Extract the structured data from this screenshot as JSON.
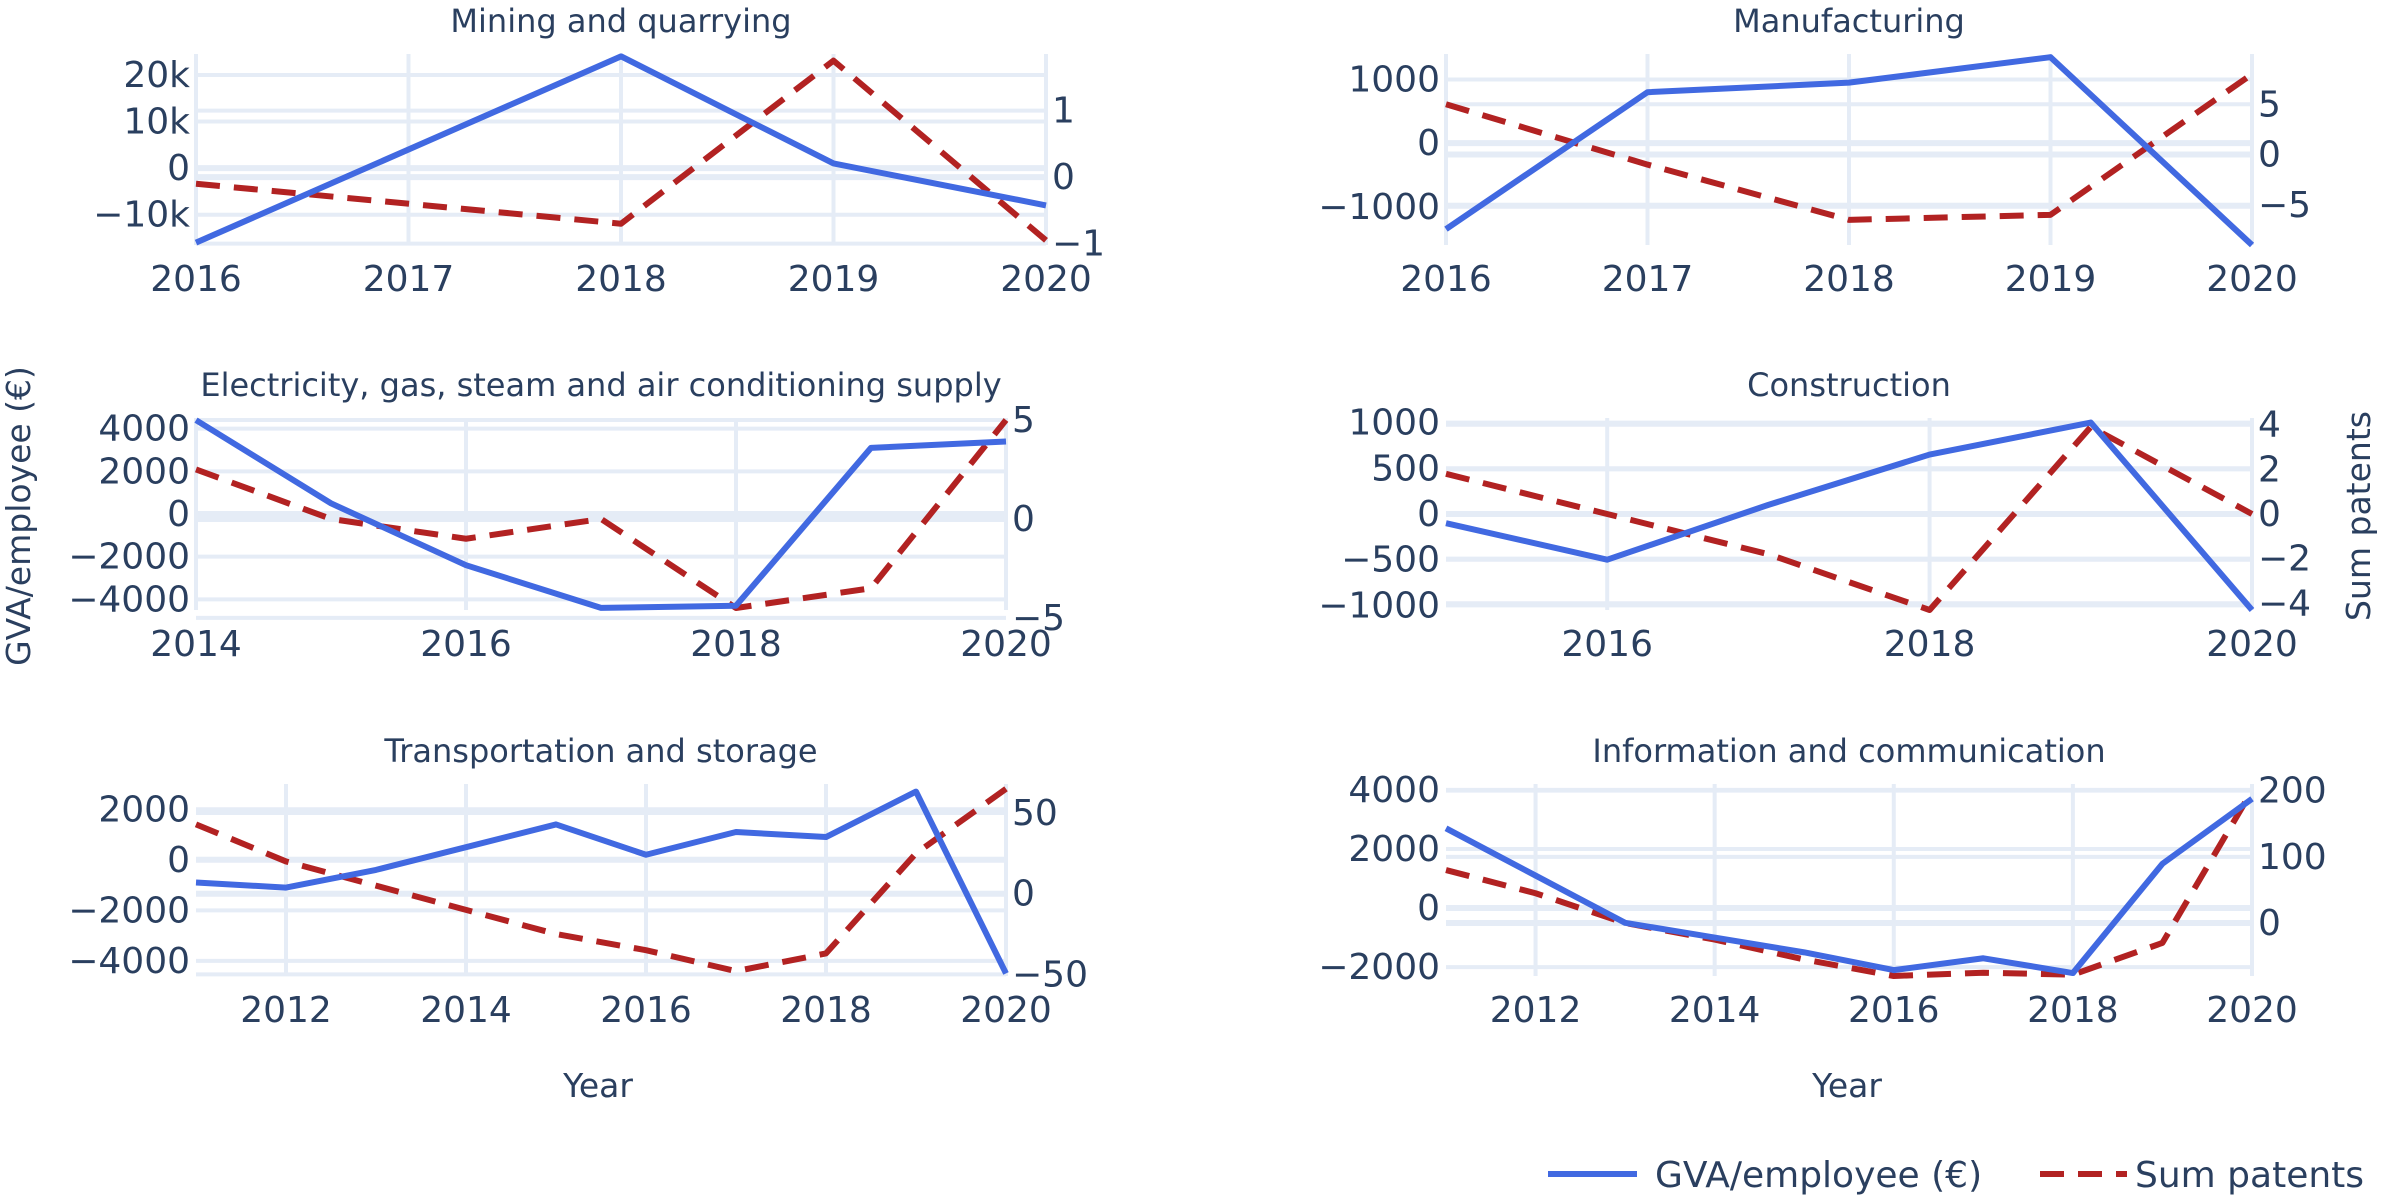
{
  "chart_data": {
    "type": "line",
    "left_ylabel": "GVA/employee (€)",
    "right_ylabel": "Sum patents",
    "xlabels": [
      "Year",
      "Year"
    ],
    "legend": {
      "placement": "bottom-right",
      "entries": [
        {
          "name": "GVA/employee (€)",
          "color": "#4169e1",
          "dash": "solid"
        },
        {
          "name": "Sum patents",
          "color": "#b22222",
          "dash": "dash"
        }
      ]
    },
    "colors": {
      "gva": "#4169e1",
      "patents": "#b22222",
      "grid": "#e5ecf6"
    },
    "panels": [
      {
        "title": "Mining and quarrying",
        "xrange": [
          2016,
          2020
        ],
        "xticks": [
          "2016",
          "2017",
          "2018",
          "2019",
          "2020"
        ],
        "left_range": [
          -16500,
          24500
        ],
        "left_ticks": [
          -10000,
          0,
          10000,
          20000
        ],
        "left_tick_labels": [
          "−10k",
          "0",
          "10k",
          "20k"
        ],
        "right_range": [
          -1.02,
          1.85
        ],
        "right_ticks": [
          -1,
          0,
          1
        ],
        "right_tick_labels": [
          "−1",
          "0",
          "1"
        ],
        "gva": {
          "x": [
            2016,
            2018,
            2019,
            2020
          ],
          "y": [
            -16000,
            24000,
            1000,
            -8000
          ]
        },
        "patents": {
          "x": [
            2016,
            2018,
            2019,
            2020
          ],
          "y": [
            -0.1,
            -0.7,
            1.75,
            -0.95
          ]
        }
      },
      {
        "title": "Manufacturing",
        "xrange": [
          2016,
          2020
        ],
        "xticks": [
          "2016",
          "2017",
          "2018",
          "2019",
          "2020"
        ],
        "left_range": [
          -1600,
          1400
        ],
        "left_ticks": [
          -1000,
          0,
          1000
        ],
        "left_tick_labels": [
          "−1000",
          "0",
          "1000"
        ],
        "right_range": [
          -9,
          10
        ],
        "right_ticks": [
          -5,
          0,
          5
        ],
        "right_tick_labels": [
          "−5",
          "0",
          "5"
        ],
        "gva": {
          "x": [
            2016,
            2017,
            2018,
            2019,
            2020
          ],
          "y": [
            -1350,
            800,
            950,
            1350,
            -1600
          ]
        },
        "patents": {
          "x": [
            2016,
            2017,
            2018,
            2019,
            2020
          ],
          "y": [
            5,
            -1,
            -6.5,
            -6,
            8
          ]
        }
      },
      {
        "title": "Electricity, gas, steam and air conditioning supply",
        "xrange": [
          2014,
          2020
        ],
        "xticks": [
          "2014",
          "2016",
          "2018",
          "2020"
        ],
        "left_range": [
          -4500,
          4500
        ],
        "left_ticks": [
          -4000,
          -2000,
          0,
          2000,
          4000
        ],
        "left_tick_labels": [
          "−4000",
          "−2000",
          "0",
          "2000",
          "4000"
        ],
        "right_range": [
          -4.6,
          5.1
        ],
        "right_ticks": [
          -5,
          0,
          5
        ],
        "right_tick_labels": [
          "−5",
          "0",
          "5"
        ],
        "gva": {
          "x": [
            2014,
            2015,
            2016,
            2017,
            2018,
            2019,
            2020
          ],
          "y": [
            4400,
            500,
            -2400,
            -4400,
            -4300,
            3100,
            3400
          ]
        },
        "patents": {
          "x": [
            2014,
            2015,
            2016,
            2017,
            2018,
            2019,
            2020
          ],
          "y": [
            2.5,
            0,
            -1,
            0,
            -4.5,
            -3.5,
            5
          ]
        }
      },
      {
        "title": "Construction",
        "xrange": [
          2015,
          2020
        ],
        "xticks": [
          "2016",
          "2018",
          "2020"
        ],
        "left_range": [
          -1050,
          1050
        ],
        "left_ticks": [
          -1000,
          -500,
          0,
          500,
          1000
        ],
        "left_tick_labels": [
          "−1000",
          "−500",
          "0",
          "500",
          "1000"
        ],
        "right_range": [
          -4.3,
          4.3
        ],
        "right_ticks": [
          -4,
          -2,
          0,
          2,
          4
        ],
        "right_tick_labels": [
          "−4",
          "−2",
          "0",
          "2",
          "4"
        ],
        "gva": {
          "x": [
            2015,
            2016,
            2017,
            2018,
            2019,
            2020
          ],
          "y": [
            -100,
            -500,
            100,
            650,
            1000,
            -1050
          ]
        },
        "patents": {
          "x": [
            2015,
            2016,
            2017,
            2018,
            2019,
            2020
          ],
          "y": [
            1.8,
            0,
            -1.8,
            -4.3,
            3.9,
            0
          ]
        }
      },
      {
        "title": "Transportation and storage",
        "xrange": [
          2011,
          2020
        ],
        "xticks": [
          "2012",
          "2014",
          "2016",
          "2018",
          "2020"
        ],
        "left_range": [
          -4600,
          3000
        ],
        "left_ticks": [
          -4000,
          -2000,
          0,
          2000
        ],
        "left_tick_labels": [
          "−4000",
          "−2000",
          "0",
          "2000"
        ],
        "right_range": [
          -51,
          68
        ],
        "right_ticks": [
          -50,
          0,
          50
        ],
        "right_tick_labels": [
          "−50",
          "0",
          "50"
        ],
        "gva": {
          "x": [
            2011,
            2012,
            2013,
            2014,
            2015,
            2016,
            2017,
            2018,
            2019,
            2020
          ],
          "y": [
            -900,
            -1100,
            -400,
            500,
            1400,
            200,
            1100,
            900,
            2700,
            -4500
          ]
        },
        "patents": {
          "x": [
            2011,
            2012,
            2013,
            2014,
            2015,
            2016,
            2017,
            2018,
            2019,
            2020
          ],
          "y": [
            43,
            20,
            5,
            -10,
            -25,
            -35,
            -48,
            -37,
            25,
            65
          ]
        }
      },
      {
        "title": "Information and communication",
        "xrange": [
          2011,
          2020
        ],
        "xticks": [
          "2012",
          "2014",
          "2016",
          "2018",
          "2020"
        ],
        "left_range": [
          -2300,
          4200
        ],
        "left_ticks": [
          -2000,
          0,
          2000,
          4000
        ],
        "left_tick_labels": [
          "−2000",
          "0",
          "2000",
          "4000"
        ],
        "right_range": [
          -80,
          210
        ],
        "right_ticks": [
          0,
          100,
          200
        ],
        "right_tick_labels": [
          "0",
          "100",
          "200"
        ],
        "gva": {
          "x": [
            2011,
            2012,
            2013,
            2014,
            2015,
            2016,
            2017,
            2018,
            2019,
            2020
          ],
          "y": [
            2700,
            1100,
            -500,
            -1000,
            -1500,
            -2100,
            -1700,
            -2200,
            1500,
            3700
          ]
        },
        "patents": {
          "x": [
            2011,
            2012,
            2013,
            2014,
            2015,
            2016,
            2017,
            2018,
            2019,
            2020
          ],
          "y": [
            80,
            45,
            0,
            -25,
            -55,
            -80,
            -75,
            -78,
            -30,
            200
          ]
        }
      }
    ]
  }
}
